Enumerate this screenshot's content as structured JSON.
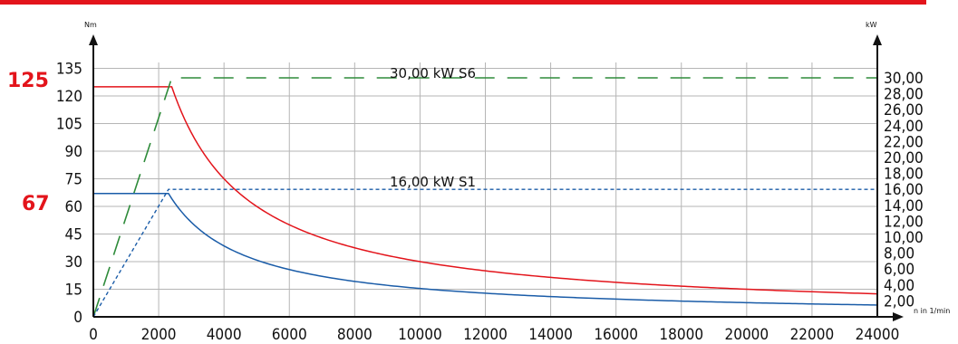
{
  "colors": {
    "top_bar": "#e3141b",
    "red_curve": "#e3141b",
    "blue_curve": "#1a5ca8",
    "green_dash": "#2e8b3a",
    "blue_dash": "#1a5ca8",
    "grid": "#b5b5b5",
    "highlight_text": "#e3141b"
  },
  "chart_data": {
    "type": "line",
    "left_axis_unit": "Nm",
    "right_axis_unit": "kW",
    "x_axis_unit": "n in 1/min",
    "x_ticks": [
      "0",
      "2000",
      "4000",
      "6000",
      "8000",
      "10000",
      "12000",
      "14000",
      "16000",
      "18000",
      "20000",
      "22000",
      "24000"
    ],
    "y_left_ticks": [
      "0",
      "15",
      "30",
      "45",
      "60",
      "75",
      "90",
      "105",
      "120",
      "135"
    ],
    "y_right_ticks": [
      "2,00",
      "4,00",
      "6,00",
      "8,00",
      "10,00",
      "12,00",
      "14,00",
      "16,00",
      "18,00",
      "20,00",
      "22,00",
      "24,00",
      "26,00",
      "28,00",
      "30,00"
    ],
    "xlim": [
      0,
      24000
    ],
    "ylim_left": [
      0,
      140
    ],
    "ylim_right": [
      0,
      32
    ],
    "highlight_labels": {
      "upper": "125",
      "lower": "67"
    },
    "annotations": {
      "s6": "30,00 kW S6",
      "s1": "16,00 kW S1"
    },
    "series": [
      {
        "curve": "torque_s6",
        "color": "red",
        "points": [
          [
            0,
            125
          ],
          [
            2400,
            125
          ],
          [
            3000,
            99.5
          ],
          [
            4000,
            74.6
          ],
          [
            5000,
            59.7
          ],
          [
            6000,
            49.7
          ],
          [
            8000,
            37.3
          ],
          [
            10000,
            29.8
          ],
          [
            12000,
            24.9
          ],
          [
            16000,
            18.7
          ],
          [
            20000,
            14.9
          ],
          [
            24000,
            12.4
          ]
        ]
      },
      {
        "curve": "torque_s1",
        "color": "blue",
        "points": [
          [
            0,
            67
          ],
          [
            2300,
            67
          ],
          [
            3000,
            50.9
          ],
          [
            4000,
            38.2
          ],
          [
            6000,
            25.5
          ],
          [
            8000,
            19.1
          ],
          [
            10000,
            15.3
          ],
          [
            12000,
            12.7
          ],
          [
            16000,
            9.5
          ],
          [
            20000,
            7.6
          ],
          [
            24000,
            6.4
          ]
        ]
      },
      {
        "curve": "power_s6",
        "color": "green-dash",
        "points": [
          [
            0,
            0
          ],
          [
            2400,
            30
          ],
          [
            24000,
            30
          ]
        ]
      },
      {
        "curve": "power_s1",
        "color": "blue-dash",
        "points": [
          [
            0,
            0
          ],
          [
            2300,
            16
          ],
          [
            24000,
            16
          ]
        ]
      }
    ]
  }
}
